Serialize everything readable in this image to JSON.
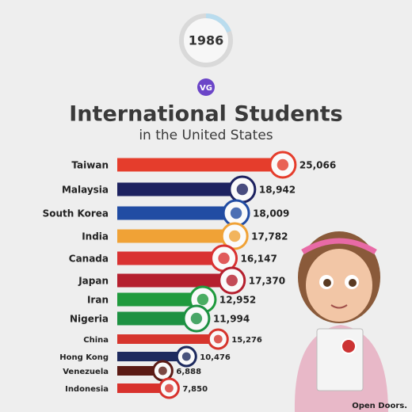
{
  "chart_data": {
    "type": "bar",
    "year": "1986",
    "logo": "VG",
    "title": "International Students",
    "subtitle": "in the United States",
    "source": "Open Doors.",
    "categories": [
      "Taiwan",
      "Malaysia",
      "South Korea",
      "India",
      "Canada",
      "Japan",
      "Iran",
      "Nigeria",
      "China",
      "Hong Kong",
      "Venezuela",
      "Indonesia"
    ],
    "values": [
      25066,
      18942,
      18009,
      17782,
      16147,
      17370,
      12952,
      11994,
      15276,
      10476,
      6888,
      7850
    ],
    "value_labels": [
      "25,066",
      "18,942",
      "18,009",
      "17,782",
      "16,147",
      "17,370",
      "12,952",
      "11,994",
      "15,276",
      "10,476",
      "6,888",
      "7,850"
    ],
    "colors": [
      "#e53d2c",
      "#1d2260",
      "#214ca3",
      "#f0a236",
      "#d93232",
      "#b51f2e",
      "#1f9a3d",
      "#1d9142",
      "#d6352d",
      "#1d2a5e",
      "#5b1b15",
      "#d8322d"
    ],
    "xlim": [
      0,
      30000
    ]
  }
}
